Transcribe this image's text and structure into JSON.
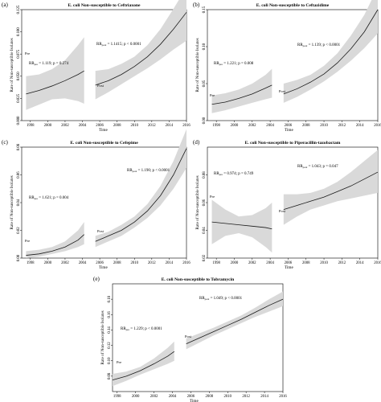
{
  "colors": {
    "band": "#d9d9d9",
    "line": "#1a1a1a",
    "axis": "#000000"
  },
  "chart_data": [
    {
      "panel": "(a)",
      "type": "line",
      "title": "E. coli Non-susceptible to Ceftriaxone",
      "xlabel": "Time",
      "ylabel": "Rate of Non-susceptible Isolates",
      "xlim": [
        1997,
        2016
      ],
      "ylim": [
        0,
        0.125
      ],
      "xticks": [
        1998,
        2000,
        2002,
        2004,
        2006,
        2008,
        2010,
        2012,
        2014,
        2016
      ],
      "yticks": [
        0.0,
        0.025,
        0.05,
        0.075,
        0.1,
        0.125
      ],
      "ytick_labels": [
        "0.000",
        "0.025",
        "0.050",
        "0.075",
        "0.100",
        "0.125"
      ],
      "segments": [
        {
          "label": "Pre",
          "x": [
            1997.5,
            1999,
            2000.5,
            2002,
            2003.5,
            2004.2
          ],
          "y": [
            0.03,
            0.034,
            0.039,
            0.045,
            0.052,
            0.056
          ],
          "lower": [
            0.012,
            0.018,
            0.024,
            0.025,
            0.022,
            0.019
          ],
          "upper": [
            0.05,
            0.052,
            0.058,
            0.068,
            0.085,
            0.094
          ]
        },
        {
          "label": "Post",
          "x": [
            2005.5,
            2007,
            2008.5,
            2010,
            2011.5,
            2013,
            2014.5,
            2016
          ],
          "y": [
            0.04,
            0.045,
            0.052,
            0.061,
            0.072,
            0.086,
            0.103,
            0.122
          ],
          "lower": [
            0.024,
            0.032,
            0.041,
            0.05,
            0.059,
            0.069,
            0.08,
            0.09
          ],
          "upper": [
            0.056,
            0.058,
            0.064,
            0.072,
            0.085,
            0.103,
            0.126,
            0.15
          ]
        }
      ],
      "annotations": [
        {
          "sub": "pre",
          "text": " = 1.119; p = 0.274"
        },
        {
          "sub": "post",
          "text": " = 1.1415; p < 0.0001"
        }
      ],
      "yscale": "lin"
    },
    {
      "panel": "(b)",
      "type": "line",
      "title": "E. coli Non-susceptible to Ceftazidime",
      "xlabel": "Time",
      "ylabel": "Rate of Non-susceptible Isolates",
      "xlim": [
        1997,
        2016
      ],
      "ylim": [
        0,
        0.15
      ],
      "xticks": [
        1998,
        2000,
        2002,
        2004,
        2006,
        2008,
        2010,
        2012,
        2014,
        2016
      ],
      "yticks": [
        0.0,
        0.05,
        0.1,
        0.15
      ],
      "ytick_labels": [
        "0.00",
        "0.05",
        "0.10",
        "0.15"
      ],
      "segments": [
        {
          "label": "Pre",
          "x": [
            1997.5,
            1999,
            2000.5,
            2002,
            2003.5,
            2004.2
          ],
          "y": [
            0.022,
            0.025,
            0.03,
            0.036,
            0.044,
            0.048
          ],
          "lower": [
            0.01,
            0.014,
            0.019,
            0.024,
            0.029,
            0.031
          ],
          "upper": [
            0.034,
            0.037,
            0.042,
            0.05,
            0.062,
            0.07
          ]
        },
        {
          "label": "Post",
          "x": [
            2005.5,
            2007,
            2008.5,
            2010,
            2011.5,
            2013,
            2014.5,
            2016
          ],
          "y": [
            0.036,
            0.043,
            0.052,
            0.063,
            0.078,
            0.097,
            0.12,
            0.15
          ],
          "lower": [
            0.024,
            0.032,
            0.042,
            0.053,
            0.066,
            0.081,
            0.098,
            0.118
          ],
          "upper": [
            0.05,
            0.055,
            0.062,
            0.074,
            0.091,
            0.115,
            0.143,
            0.18
          ]
        }
      ],
      "annotations": [
        {
          "sub": "pre",
          "text": " = 1.221; p = 0.008"
        },
        {
          "sub": "post",
          "text": " = 1.139; p < 0.0001"
        }
      ],
      "yscale": "lin"
    },
    {
      "panel": "(c)",
      "type": "line",
      "title": "E. coli Non-susceptible to Cefepime",
      "xlabel": "Time",
      "ylabel": "Rate of Non-susceptible Isolates",
      "xlim": [
        1997,
        2016
      ],
      "ylim": [
        0,
        0.08
      ],
      "xticks": [
        1998,
        2000,
        2002,
        2004,
        2006,
        2008,
        2010,
        2012,
        2014,
        2016
      ],
      "yticks": [
        0.0,
        0.02,
        0.04,
        0.06,
        0.08
      ],
      "ytick_labels": [
        "0.00",
        "0.02",
        "0.04",
        "0.06",
        "0.08"
      ],
      "segments": [
        {
          "label": "Pre",
          "x": [
            1997.5,
            1999,
            2000.5,
            2002,
            2003.5,
            2004.2
          ],
          "y": [
            0.002,
            0.003,
            0.005,
            0.008,
            0.013,
            0.017
          ],
          "lower": [
            0.0,
            0.001,
            0.003,
            0.005,
            0.008,
            0.01
          ],
          "upper": [
            0.005,
            0.006,
            0.008,
            0.012,
            0.02,
            0.026
          ]
        },
        {
          "label": "Post",
          "x": [
            2005.5,
            2007,
            2008.5,
            2010,
            2011.5,
            2013,
            2014.5,
            2016
          ],
          "y": [
            0.012,
            0.016,
            0.02,
            0.026,
            0.034,
            0.045,
            0.06,
            0.079
          ],
          "lower": [
            0.008,
            0.012,
            0.016,
            0.022,
            0.029,
            0.038,
            0.05,
            0.065
          ],
          "upper": [
            0.016,
            0.019,
            0.024,
            0.03,
            0.039,
            0.052,
            0.07,
            0.093
          ]
        }
      ],
      "annotations": [
        {
          "sub": "pre",
          "text": " = 1.621; p = 0.004"
        },
        {
          "sub": "post",
          "text": " = 1.190; p < 0.0001"
        }
      ],
      "yscale": "lin"
    },
    {
      "panel": "(d)",
      "type": "line",
      "title": "E. coli Non-susceptible to Piperacillin-tazobactam",
      "xlabel": "Time",
      "ylabel": "Rate of Non-susceptible Isolates",
      "xlim": [
        1997,
        2016
      ],
      "ylim": [
        0.02,
        0.1
      ],
      "xticks": [
        1998,
        2000,
        2002,
        2004,
        2006,
        2008,
        2010,
        2012,
        2014,
        2016
      ],
      "yticks": [
        0.02,
        0.04,
        0.06,
        0.08
      ],
      "ytick_labels": [
        "0.02",
        "0.04",
        "0.06",
        "0.08"
      ],
      "segments": [
        {
          "label": "Pre",
          "x": [
            1997.5,
            1999,
            2000.5,
            2002,
            2003.5,
            2004.2
          ],
          "y": [
            0.046,
            0.045,
            0.044,
            0.043,
            0.042,
            0.041
          ],
          "lower": [
            0.03,
            0.036,
            0.038,
            0.035,
            0.028,
            0.024
          ],
          "upper": [
            0.062,
            0.055,
            0.05,
            0.051,
            0.056,
            0.06
          ]
        },
        {
          "label": "Post",
          "x": [
            2005.5,
            2007,
            2008.5,
            2010,
            2011.5,
            2013,
            2014.5,
            2016
          ],
          "y": [
            0.055,
            0.058,
            0.061,
            0.064,
            0.068,
            0.072,
            0.077,
            0.082
          ],
          "lower": [
            0.044,
            0.05,
            0.055,
            0.058,
            0.061,
            0.063,
            0.065,
            0.067
          ],
          "upper": [
            0.066,
            0.066,
            0.067,
            0.07,
            0.075,
            0.082,
            0.09,
            0.098
          ]
        }
      ],
      "annotations": [
        {
          "sub": "pre",
          "text": " = 0.974; p = 0.749"
        },
        {
          "sub": "post",
          "text": " = 1.043; p = 0.047"
        }
      ],
      "yscale": "lin"
    },
    {
      "panel": "(e)",
      "type": "line",
      "title": "E. coli Non-susceptible to Tobramycin",
      "xlabel": "Time",
      "ylabel": "Rate of Non-susceptible Isolates",
      "xlim": [
        1997.5,
        2016
      ],
      "ylim": [
        0.06,
        0.2
      ],
      "xticks": [
        1998,
        2000,
        2002,
        2004,
        2006,
        2008,
        2010,
        2012,
        2014,
        2016
      ],
      "yticks": [
        0.08,
        0.1,
        0.12,
        0.14,
        0.16,
        0.18
      ],
      "ytick_labels": [
        "0.08",
        "0.10",
        "0.12",
        "0.14",
        "0.16",
        "0.18"
      ],
      "segments": [
        {
          "label": "Pre",
          "x": [
            1997.5,
            1999,
            2000.5,
            2002,
            2003.5,
            2004.2
          ],
          "y": [
            0.075,
            0.08,
            0.087,
            0.096,
            0.106,
            0.112
          ],
          "lower": [
            0.067,
            0.074,
            0.082,
            0.089,
            0.096,
            0.1
          ],
          "upper": [
            0.083,
            0.086,
            0.092,
            0.103,
            0.117,
            0.125
          ]
        },
        {
          "label": "Post",
          "x": [
            2005.5,
            2007,
            2008.5,
            2010,
            2011.5,
            2013,
            2014.5,
            2016
          ],
          "y": [
            0.122,
            0.13,
            0.138,
            0.146,
            0.154,
            0.163,
            0.172,
            0.18
          ],
          "lower": [
            0.115,
            0.124,
            0.133,
            0.141,
            0.149,
            0.157,
            0.164,
            0.171
          ],
          "upper": [
            0.129,
            0.136,
            0.143,
            0.151,
            0.159,
            0.169,
            0.18,
            0.19
          ]
        }
      ],
      "annotations": [
        {
          "sub": "pre",
          "text": " = 1.229; p < 0.0001"
        },
        {
          "sub": "post",
          "text": " = 1.049; p < 0.0001"
        }
      ],
      "yscale": "lin"
    }
  ]
}
